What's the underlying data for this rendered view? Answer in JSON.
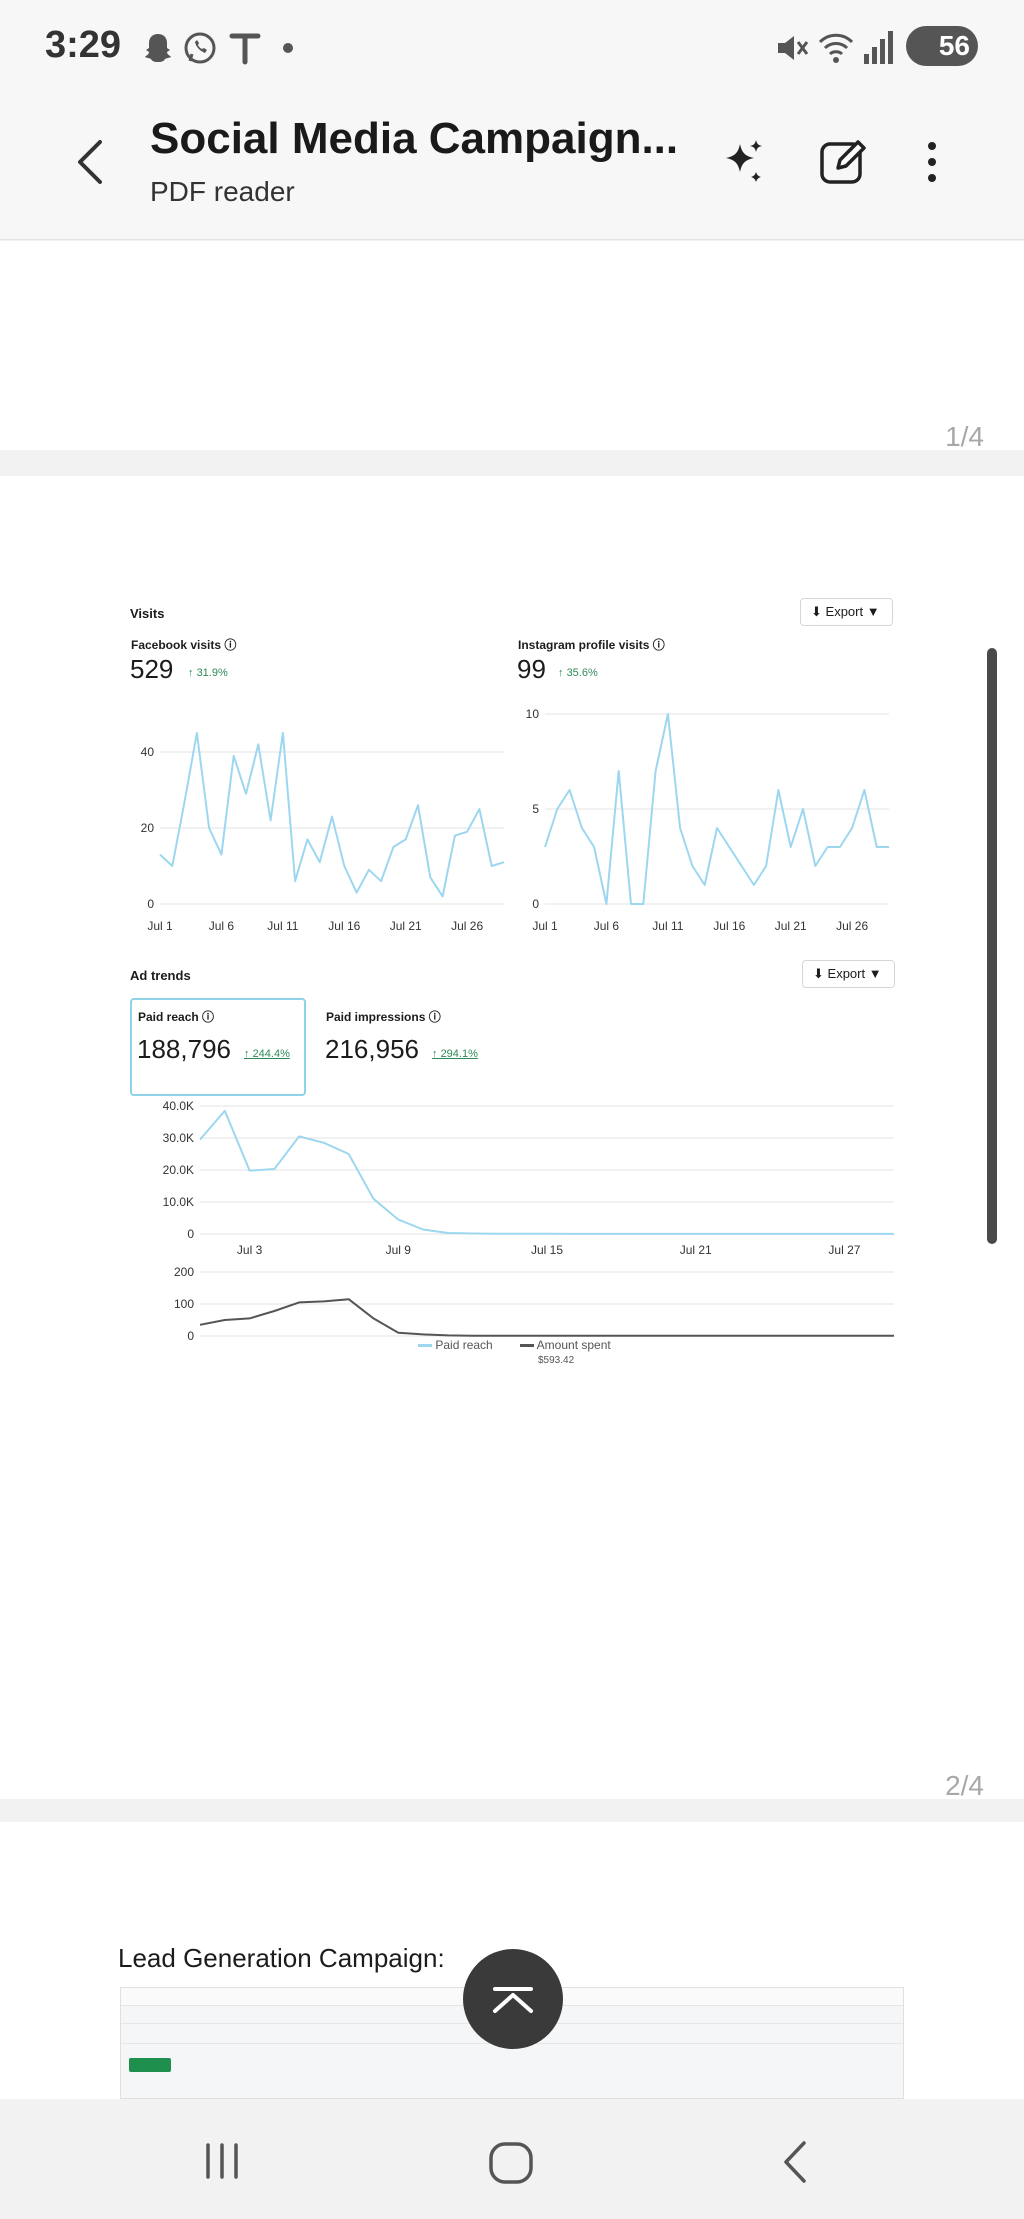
{
  "status_bar": {
    "time": "3:29",
    "battery": "56"
  },
  "app_bar": {
    "title": "Social Media Campaign...",
    "subtitle": "PDF reader"
  },
  "pages": {
    "page1_number": "1/4",
    "page2_number": "2/4"
  },
  "visits": {
    "title": "Visits",
    "export_label": "Export",
    "facebook": {
      "label": "Facebook visits",
      "value": "529",
      "change": "31.9%"
    },
    "instagram": {
      "label": "Instagram profile visits",
      "value": "99",
      "change": "35.6%"
    }
  },
  "ad_trends": {
    "title": "Ad trends",
    "export_label": "Export",
    "paid_reach": {
      "label": "Paid reach",
      "value": "188,796",
      "change": "244.4%"
    },
    "paid_impressions": {
      "label": "Paid impressions",
      "value": "216,956",
      "change": "294.1%"
    },
    "legend_paid_reach": "Paid reach",
    "legend_amount_spent": "Amount spent",
    "legend_amount_value": "$593.42"
  },
  "lead_section": {
    "title": "Lead Generation Campaign:"
  },
  "colors": {
    "series_line": "#9dd7ef",
    "spent_line": "#555555",
    "positive_change": "#2e8a57"
  },
  "chart_data": [
    {
      "type": "line",
      "title": "Facebook visits",
      "x_tick_labels": [
        "Jul 1",
        "Jul 6",
        "Jul 11",
        "Jul 16",
        "Jul 21",
        "Jul 26"
      ],
      "y_tick_labels": [
        "0",
        "20",
        "40"
      ],
      "ylim": [
        0,
        50
      ],
      "x": [
        1,
        2,
        3,
        4,
        5,
        6,
        7,
        8,
        9,
        10,
        11,
        12,
        13,
        14,
        15,
        16,
        17,
        18,
        19,
        20,
        21,
        22,
        23,
        24,
        25,
        26,
        27,
        28,
        29
      ],
      "values": [
        13,
        10,
        27,
        45,
        20,
        13,
        39,
        29,
        42,
        22,
        45,
        6,
        17,
        11,
        23,
        10,
        3,
        9,
        6,
        15,
        17,
        26,
        7,
        2,
        18,
        19,
        25,
        10,
        11
      ],
      "grid": true
    },
    {
      "type": "line",
      "title": "Instagram profile visits",
      "x_tick_labels": [
        "Jul 1",
        "Jul 6",
        "Jul 11",
        "Jul 16",
        "Jul 21",
        "Jul 26"
      ],
      "y_tick_labels": [
        "0",
        "5",
        "10"
      ],
      "ylim": [
        0,
        10
      ],
      "x": [
        1,
        2,
        3,
        4,
        5,
        6,
        7,
        8,
        9,
        10,
        11,
        12,
        13,
        14,
        15,
        16,
        17,
        18,
        19,
        20,
        21,
        22,
        23,
        24,
        25,
        26,
        27,
        28,
        29
      ],
      "values": [
        3,
        5,
        6,
        4,
        3,
        0,
        7,
        0,
        0,
        7,
        10,
        4,
        2,
        1,
        4,
        3,
        2,
        1,
        2,
        6,
        3,
        5,
        2,
        3,
        3,
        4,
        6,
        3,
        3
      ],
      "grid": true
    },
    {
      "type": "line",
      "title": "Paid reach",
      "x_tick_labels": [
        "Jul 3",
        "Jul 9",
        "Jul 15",
        "Jul 21",
        "Jul 27"
      ],
      "y_tick_labels": [
        "0",
        "10.0K",
        "20.0K",
        "30.0K",
        "40.0K"
      ],
      "ylim": [
        0,
        40000
      ],
      "x": [
        1,
        2,
        3,
        4,
        5,
        6,
        7,
        8,
        9,
        10,
        11,
        12,
        13,
        14,
        15,
        16,
        17,
        18,
        19,
        20,
        21,
        22,
        23,
        24,
        25,
        26,
        27,
        28,
        29
      ],
      "values": [
        29500,
        38500,
        19800,
        20300,
        30500,
        28500,
        25000,
        11000,
        4500,
        1400,
        300,
        150,
        100,
        80,
        50,
        40,
        30,
        30,
        20,
        20,
        20,
        20,
        20,
        20,
        20,
        20,
        20,
        20,
        20
      ],
      "grid": true
    },
    {
      "type": "line",
      "title": "Amount spent",
      "x_tick_labels": [
        "Jul 3",
        "Jul 9",
        "Jul 15",
        "Jul 21",
        "Jul 27"
      ],
      "y_tick_labels": [
        "0",
        "100",
        "200"
      ],
      "ylim": [
        0,
        200
      ],
      "x": [
        1,
        2,
        3,
        4,
        5,
        6,
        7,
        8,
        9,
        10,
        11,
        12,
        13,
        14,
        15,
        16,
        17,
        18,
        19,
        20,
        21,
        22,
        23,
        24,
        25,
        26,
        27,
        28,
        29
      ],
      "values": [
        35,
        50,
        55,
        78,
        105,
        108,
        115,
        55,
        10,
        5,
        2,
        1,
        1,
        1,
        1,
        1,
        1,
        1,
        1,
        1,
        1,
        1,
        1,
        1,
        1,
        1,
        1,
        1,
        1
      ],
      "grid": true
    }
  ]
}
